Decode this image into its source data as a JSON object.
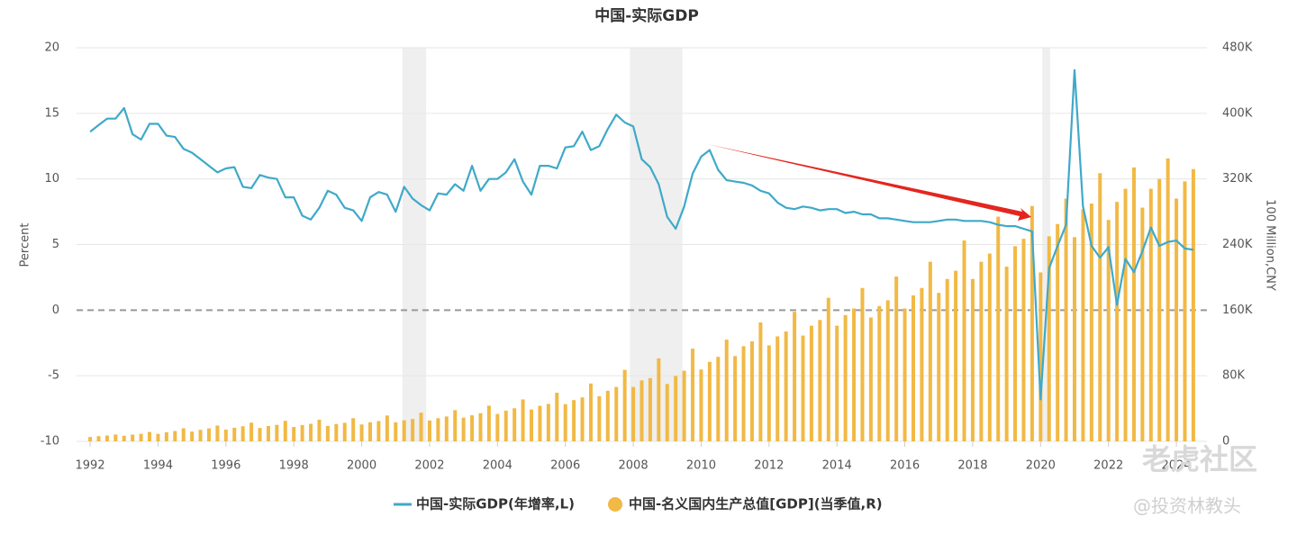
{
  "chart_data": {
    "type": "combo",
    "title": "中国-实际GDP",
    "y_label": "Percent",
    "y2_label": "100 Million,CNY",
    "xlim": [
      1991.6,
      2024.9
    ],
    "xticks": [
      1992,
      1994,
      1996,
      1998,
      2000,
      2002,
      2004,
      2006,
      2008,
      2010,
      2012,
      2014,
      2016,
      2018,
      2020,
      2022,
      2024
    ],
    "ylim": [
      -10,
      20
    ],
    "yticks": [
      -10,
      -5,
      0,
      5,
      10,
      15,
      20
    ],
    "y2lim": [
      0,
      480000
    ],
    "y2ticks": [
      {
        "value": 0,
        "label": "0"
      },
      {
        "value": 80000,
        "label": "80K"
      },
      {
        "value": 160000,
        "label": "160K"
      },
      {
        "value": 240000,
        "label": "240K"
      },
      {
        "value": 320000,
        "label": "320K"
      },
      {
        "value": 400000,
        "label": "400K"
      },
      {
        "value": 480000,
        "label": "480K"
      }
    ],
    "grid": true,
    "zero_line": true,
    "legend": "bottom",
    "shaded_ranges": [
      [
        2001.2,
        2001.9
      ],
      [
        2007.9,
        2009.45
      ],
      [
        2020.05,
        2020.28
      ]
    ],
    "shade_color": "#efefef",
    "watermarks": [
      "老虎社区",
      "@投资林教头"
    ],
    "x": [
      1992,
      1992.25,
      1992.5,
      1992.75,
      1993,
      1993.25,
      1993.5,
      1993.75,
      1994,
      1994.25,
      1994.5,
      1994.75,
      1995,
      1995.25,
      1995.5,
      1995.75,
      1996,
      1996.25,
      1996.5,
      1996.75,
      1997,
      1997.25,
      1997.5,
      1997.75,
      1998,
      1998.25,
      1998.5,
      1998.75,
      1999,
      1999.25,
      1999.5,
      1999.75,
      2000,
      2000.25,
      2000.5,
      2000.75,
      2001,
      2001.25,
      2001.5,
      2001.75,
      2002,
      2002.25,
      2002.5,
      2002.75,
      2003,
      2003.25,
      2003.5,
      2003.75,
      2004,
      2004.25,
      2004.5,
      2004.75,
      2005,
      2005.25,
      2005.5,
      2005.75,
      2006,
      2006.25,
      2006.5,
      2006.75,
      2007,
      2007.25,
      2007.5,
      2007.75,
      2008,
      2008.25,
      2008.5,
      2008.75,
      2009,
      2009.25,
      2009.5,
      2009.75,
      2010,
      2010.25,
      2010.5,
      2010.75,
      2011,
      2011.25,
      2011.5,
      2011.75,
      2012,
      2012.25,
      2012.5,
      2012.75,
      2013,
      2013.25,
      2013.5,
      2013.75,
      2014,
      2014.25,
      2014.5,
      2014.75,
      2015,
      2015.25,
      2015.5,
      2015.75,
      2016,
      2016.25,
      2016.5,
      2016.75,
      2017,
      2017.25,
      2017.5,
      2017.75,
      2018,
      2018.25,
      2018.5,
      2018.75,
      2019,
      2019.25,
      2019.5,
      2019.75,
      2020,
      2020.25,
      2020.5,
      2020.75,
      2021,
      2021.25,
      2021.5,
      2021.75,
      2022,
      2022.25,
      2022.5,
      2022.75,
      2023,
      2023.25,
      2023.5,
      2023.75,
      2024,
      2024.25,
      2024.5
    ],
    "series": [
      {
        "name": "中国-实际GDP(年增率,L)",
        "type": "line",
        "axis": "y",
        "color": "#3fa9c9",
        "values": [
          13.6,
          14.1,
          14.6,
          14.6,
          15.4,
          13.4,
          13.0,
          14.2,
          14.2,
          13.3,
          13.2,
          12.3,
          12.0,
          11.5,
          11.0,
          10.5,
          10.8,
          10.9,
          9.4,
          9.3,
          10.3,
          10.1,
          10.0,
          8.6,
          8.6,
          7.2,
          6.9,
          7.8,
          9.1,
          8.8,
          7.8,
          7.6,
          6.8,
          8.6,
          9.0,
          8.8,
          7.5,
          9.4,
          8.5,
          8.0,
          7.6,
          8.9,
          8.8,
          9.6,
          9.1,
          11.0,
          9.1,
          10.0,
          10.0,
          10.5,
          11.5,
          9.8,
          8.8,
          11.0,
          11.0,
          10.8,
          12.4,
          12.5,
          13.6,
          12.2,
          12.5,
          13.8,
          14.9,
          14.3,
          14.0,
          11.5,
          10.9,
          9.6,
          7.1,
          6.2,
          7.9,
          10.4,
          11.7,
          12.2,
          10.7,
          9.9,
          9.8,
          9.7,
          9.5,
          9.1,
          8.9,
          8.2,
          7.8,
          7.7,
          7.9,
          7.8,
          7.6,
          7.7,
          7.7,
          7.4,
          7.5,
          7.3,
          7.3,
          7.0,
          7.0,
          6.9,
          6.8,
          6.7,
          6.7,
          6.7,
          6.8,
          6.9,
          6.9,
          6.8,
          6.8,
          6.8,
          6.7,
          6.5,
          6.4,
          6.4,
          6.2,
          6.0,
          -6.8,
          3.2,
          4.9,
          6.5,
          18.3,
          7.9,
          4.9,
          4.0,
          4.8,
          0.4,
          3.9,
          2.9,
          4.5,
          6.3,
          4.9,
          5.2,
          5.3,
          4.7,
          4.6
        ]
      },
      {
        "name": "中国-名义国内生产总值[GDP](当季值,R)",
        "type": "bar",
        "axis": "y2",
        "color": "#f1b945",
        "values": [
          5300,
          6300,
          7100,
          8300,
          6800,
          8200,
          9200,
          11400,
          9100,
          11000,
          12600,
          15900,
          11900,
          14000,
          15800,
          19300,
          14300,
          16600,
          18400,
          22800,
          16300,
          18700,
          20100,
          25000,
          17500,
          19900,
          21400,
          26400,
          18800,
          21100,
          22600,
          28200,
          20600,
          23200,
          24700,
          31500,
          23300,
          25700,
          27300,
          34900,
          25400,
          28200,
          30300,
          38000,
          28800,
          31700,
          34300,
          43500,
          33400,
          37400,
          40300,
          51100,
          38800,
          43300,
          45600,
          59300,
          45300,
          50300,
          53600,
          70500,
          55000,
          61600,
          66300,
          87200,
          66300,
          74300,
          77100,
          101200,
          70000,
          79800,
          86100,
          113000,
          87600,
          96900,
          103000,
          124000,
          104000,
          116000,
          122000,
          145000,
          117000,
          128000,
          134000,
          158000,
          129000,
          141000,
          148000,
          175000,
          141000,
          154000,
          162000,
          187000,
          151000,
          165000,
          172000,
          201000,
          162000,
          178000,
          187000,
          219000,
          181000,
          198000,
          208000,
          245000,
          198000,
          219000,
          229000,
          274000,
          213000,
          238000,
          247000,
          287000,
          206000,
          250000,
          265000,
          296000,
          249000,
          283000,
          290000,
          327000,
          270000,
          292000,
          308000,
          334000,
          285000,
          308000,
          320000,
          345000,
          296000,
          317000,
          332000
        ]
      }
    ]
  }
}
